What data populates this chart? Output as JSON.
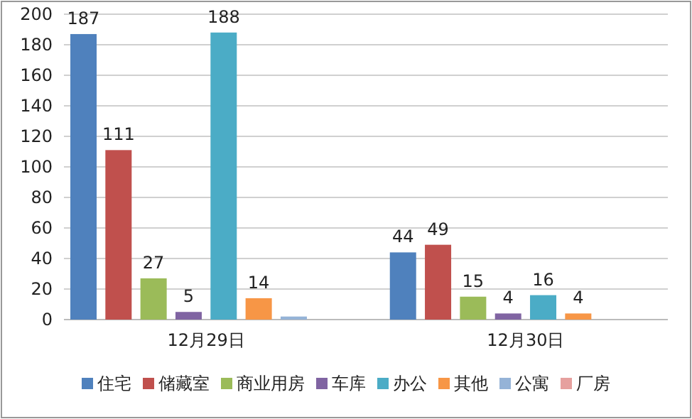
{
  "chart_data": {
    "type": "bar",
    "categories": [
      "12月29日",
      "12月30日"
    ],
    "series": [
      {
        "name": "住宅",
        "color": "#4f81bd",
        "values": [
          187,
          44
        ],
        "value_labels": [
          "187",
          "44"
        ]
      },
      {
        "name": "储藏室",
        "color": "#c0504d",
        "values": [
          111,
          49
        ],
        "value_labels": [
          "111",
          "49"
        ]
      },
      {
        "name": "商业用房",
        "color": "#9bbb59",
        "values": [
          27,
          15
        ],
        "value_labels": [
          "27",
          "15"
        ]
      },
      {
        "name": "车库",
        "color": "#8064a2",
        "values": [
          5,
          4
        ],
        "value_labels": [
          "5",
          "4"
        ]
      },
      {
        "name": "办公",
        "color": "#4bacc6",
        "values": [
          188,
          16
        ],
        "value_labels": [
          "188",
          "16"
        ]
      },
      {
        "name": "其他",
        "color": "#f79646",
        "values": [
          14,
          4
        ],
        "value_labels": [
          "14",
          "4"
        ]
      },
      {
        "name": "公寓",
        "color": "#95b3d7",
        "values": [
          2,
          0
        ],
        "value_labels": [
          null,
          null
        ]
      },
      {
        "name": "厂房",
        "color": "#e6a09e",
        "values": [
          0,
          0
        ],
        "value_labels": [
          null,
          null
        ]
      }
    ],
    "ylim": [
      0,
      200
    ],
    "yticks": [
      0,
      20,
      40,
      60,
      80,
      100,
      120,
      140,
      160,
      180,
      200
    ],
    "grid": "y",
    "legend": "bottom"
  }
}
